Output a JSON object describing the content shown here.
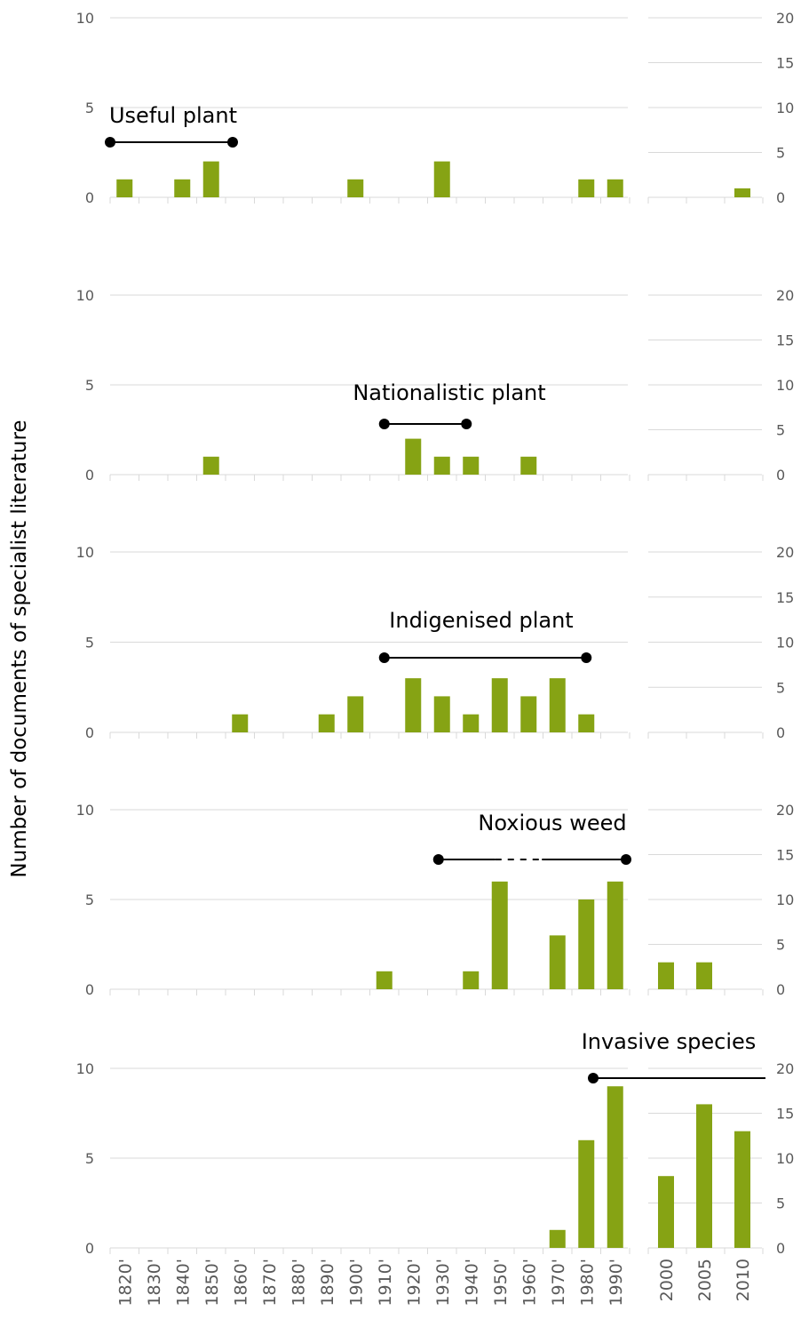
{
  "ylabel": "Number of documents of specialist literature",
  "colors": {
    "bar": "#86a314",
    "grid": "#d9d9d9",
    "tick_text": "#595959",
    "annotation": "#000000"
  },
  "chart_data": [
    {
      "type": "bar",
      "title": "Useful plant",
      "categories": [
        "1820'",
        "1830'",
        "1840'",
        "1850'",
        "1860'",
        "1870'",
        "1880'",
        "1890'",
        "1900'",
        "1910'",
        "1920'",
        "1930'",
        "1940'",
        "1950'",
        "1960'",
        "1970'",
        "1980'",
        "1990'"
      ],
      "values": [
        1,
        0,
        1,
        2,
        0,
        0,
        0,
        0,
        1,
        0,
        0,
        2,
        0,
        0,
        0,
        0,
        1,
        1
      ],
      "ylim": [
        0,
        10
      ],
      "yticks": [
        0,
        5,
        10
      ],
      "secondary": {
        "categories": [
          "2000",
          "2005",
          "2010"
        ],
        "values": [
          0,
          0,
          1
        ],
        "ylim": [
          0,
          20
        ],
        "yticks": [
          0,
          5,
          10,
          15,
          20
        ]
      },
      "period": {
        "start": "1820'",
        "end": "1860'",
        "dashed_segment": null
      }
    },
    {
      "type": "bar",
      "title": "Nationalistic plant",
      "categories": [
        "1820'",
        "1830'",
        "1840'",
        "1850'",
        "1860'",
        "1870'",
        "1880'",
        "1890'",
        "1900'",
        "1910'",
        "1920'",
        "1930'",
        "1940'",
        "1950'",
        "1960'",
        "1970'",
        "1980'",
        "1990'"
      ],
      "values": [
        0,
        0,
        0,
        1,
        0,
        0,
        0,
        0,
        0,
        0,
        2,
        1,
        1,
        0,
        1,
        0,
        0,
        0
      ],
      "ylim": [
        0,
        10
      ],
      "yticks": [
        0,
        5,
        10
      ],
      "secondary": {
        "categories": [
          "2000",
          "2005",
          "2010"
        ],
        "values": [
          0,
          0,
          0
        ],
        "ylim": [
          0,
          20
        ],
        "yticks": [
          0,
          5,
          10,
          15,
          20
        ]
      },
      "period": {
        "start": "1910'",
        "end": "1940'",
        "dashed_segment": null
      }
    },
    {
      "type": "bar",
      "title": "Indigenised plant",
      "categories": [
        "1820'",
        "1830'",
        "1840'",
        "1850'",
        "1860'",
        "1870'",
        "1880'",
        "1890'",
        "1900'",
        "1910'",
        "1920'",
        "1930'",
        "1940'",
        "1950'",
        "1960'",
        "1970'",
        "1980'",
        "1990'"
      ],
      "values": [
        0,
        0,
        0,
        0,
        1,
        0,
        0,
        1,
        2,
        0,
        3,
        2,
        1,
        3,
        2,
        3,
        1,
        0
      ],
      "ylim": [
        0,
        10
      ],
      "yticks": [
        0,
        5,
        10
      ],
      "secondary": {
        "categories": [
          "2000",
          "2005",
          "2010"
        ],
        "values": [
          0,
          0,
          0
        ],
        "ylim": [
          0,
          20
        ],
        "yticks": [
          0,
          5,
          10,
          15,
          20
        ]
      },
      "period": {
        "start": "1910'",
        "end": "1980'",
        "dashed_segment": null
      }
    },
    {
      "type": "bar",
      "title": "Noxious weed",
      "categories": [
        "1820'",
        "1830'",
        "1840'",
        "1850'",
        "1860'",
        "1870'",
        "1880'",
        "1890'",
        "1900'",
        "1910'",
        "1920'",
        "1930'",
        "1940'",
        "1950'",
        "1960'",
        "1970'",
        "1980'",
        "1990'"
      ],
      "values": [
        0,
        0,
        0,
        0,
        0,
        0,
        0,
        0,
        0,
        1,
        0,
        0,
        1,
        6,
        0,
        3,
        5,
        6
      ],
      "ylim": [
        0,
        10
      ],
      "yticks": [
        0,
        5,
        10
      ],
      "secondary": {
        "categories": [
          "2000",
          "2005",
          "2010"
        ],
        "values": [
          3,
          3,
          0
        ],
        "ylim": [
          0,
          20
        ],
        "yticks": [
          0,
          5,
          10,
          15,
          20
        ]
      },
      "period": {
        "start": "1930'",
        "end": "1990'",
        "dashed_segment": [
          "1950'",
          "1960'"
        ]
      }
    },
    {
      "type": "bar",
      "title": "Invasive species",
      "categories": [
        "1820'",
        "1830'",
        "1840'",
        "1850'",
        "1860'",
        "1870'",
        "1880'",
        "1890'",
        "1900'",
        "1910'",
        "1920'",
        "1930'",
        "1940'",
        "1950'",
        "1960'",
        "1970'",
        "1980'",
        "1990'"
      ],
      "values": [
        0,
        0,
        0,
        0,
        0,
        0,
        0,
        0,
        0,
        0,
        0,
        0,
        0,
        0,
        0,
        1,
        6,
        9
      ],
      "ylim": [
        0,
        10
      ],
      "yticks": [
        0,
        5,
        10
      ],
      "secondary": {
        "categories": [
          "2000",
          "2005",
          "2010"
        ],
        "values": [
          8,
          16,
          13
        ],
        "ylim": [
          0,
          20
        ],
        "yticks": [
          0,
          5,
          10,
          15,
          20
        ]
      },
      "period": {
        "start": "1980'",
        "end": "2010",
        "dashed_segment": null
      }
    }
  ]
}
